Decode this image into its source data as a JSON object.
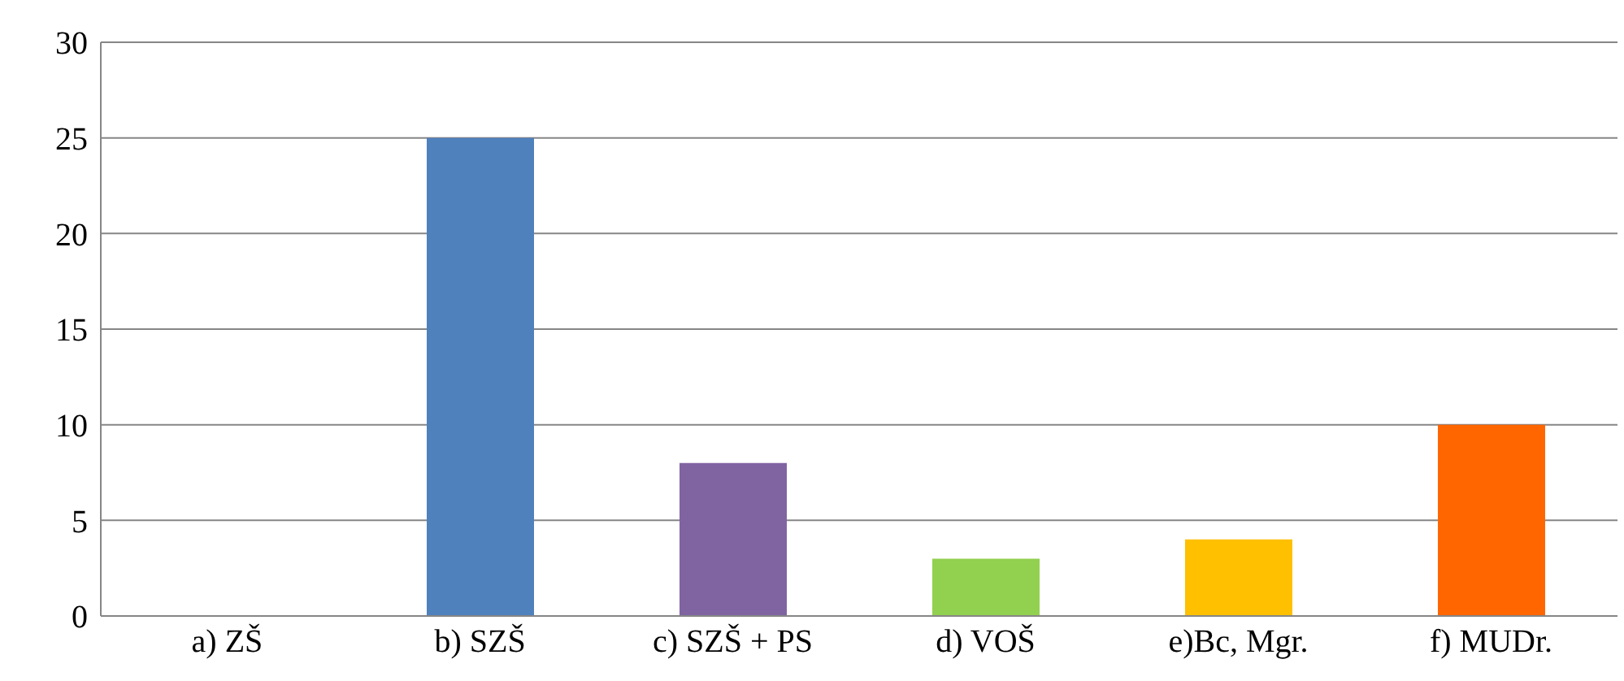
{
  "chart_data": {
    "type": "bar",
    "categories": [
      "a) ZŠ",
      "b) SZŠ",
      "c) SZŠ + PS",
      "d) VOŠ",
      "e)Bc, Mgr.",
      "f) MUDr."
    ],
    "values": [
      0,
      25,
      8,
      3,
      4,
      10
    ],
    "colors": [
      "#4f81bd",
      "#4f81bd",
      "#8064a2",
      "#92d050",
      "#ffc000",
      "#ff6600"
    ],
    "ylim": [
      0,
      30
    ],
    "yticks": [
      0,
      5,
      10,
      15,
      20,
      25,
      30
    ],
    "grid": "y"
  }
}
